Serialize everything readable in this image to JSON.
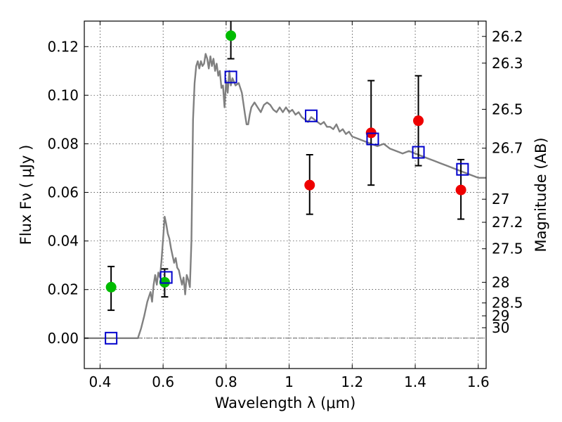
{
  "chart_data": {
    "type": "scatter",
    "xlabel": "Wavelength  λ (μm)",
    "ylabel": "Flux  Fν  ( μJy )",
    "y2label": "Magnitude (AB)",
    "xlim": [
      0.35,
      1.625
    ],
    "ylim": [
      -0.0125,
      0.1305
    ],
    "grid": true,
    "x_ticks": [
      0.4,
      0.6,
      0.8,
      1.0,
      1.2,
      1.4,
      1.6
    ],
    "x_tick_labels": [
      "0.4",
      "0.6",
      "0.8",
      "1",
      "1.2",
      "1.4",
      "1.6"
    ],
    "y_ticks": [
      0.0,
      0.02,
      0.04,
      0.06,
      0.08,
      0.1,
      0.12
    ],
    "y_tick_labels": [
      "0.00",
      "0.02",
      "0.04",
      "0.06",
      "0.08",
      "0.10",
      "0.12"
    ],
    "y2_ticks": [
      {
        "flux": 0.1242,
        "label": "26.2"
      },
      {
        "flux": 0.1132,
        "label": "26.3"
      },
      {
        "flux": 0.0942,
        "label": "26.5"
      },
      {
        "flux": 0.0782,
        "label": "26.7"
      },
      {
        "flux": 0.0572,
        "label": "27"
      },
      {
        "flux": 0.0477,
        "label": "27.2"
      },
      {
        "flux": 0.0368,
        "label": "27.5"
      },
      {
        "flux": 0.023,
        "label": "28"
      },
      {
        "flux": 0.0145,
        "label": "28.5"
      },
      {
        "flux": 0.0092,
        "label": "29"
      },
      {
        "flux": 0.0043,
        "label": "30"
      }
    ],
    "zero_line": 0.0,
    "colors": {
      "model": "#808080",
      "green": "#00bb00",
      "red": "#ee0000",
      "square": "#0000cc",
      "errorbar": "#000000"
    },
    "series": [
      {
        "name": "model spectrum",
        "kind": "line",
        "x": [
          0.35,
          0.52,
          0.53,
          0.54,
          0.55,
          0.56,
          0.565,
          0.57,
          0.575,
          0.58,
          0.585,
          0.59,
          0.595,
          0.6,
          0.605,
          0.61,
          0.615,
          0.62,
          0.625,
          0.63,
          0.635,
          0.64,
          0.645,
          0.65,
          0.655,
          0.66,
          0.665,
          0.67,
          0.675,
          0.68,
          0.685,
          0.69,
          0.695,
          0.7,
          0.705,
          0.71,
          0.715,
          0.72,
          0.725,
          0.73,
          0.735,
          0.74,
          0.745,
          0.75,
          0.755,
          0.76,
          0.765,
          0.77,
          0.775,
          0.78,
          0.785,
          0.79,
          0.795,
          0.8,
          0.805,
          0.81,
          0.815,
          0.82,
          0.83,
          0.84,
          0.85,
          0.86,
          0.865,
          0.87,
          0.875,
          0.88,
          0.885,
          0.89,
          0.9,
          0.91,
          0.92,
          0.93,
          0.94,
          0.95,
          0.96,
          0.97,
          0.98,
          0.99,
          1.0,
          1.01,
          1.02,
          1.03,
          1.04,
          1.05,
          1.06,
          1.07,
          1.08,
          1.09,
          1.1,
          1.11,
          1.12,
          1.13,
          1.14,
          1.15,
          1.16,
          1.17,
          1.18,
          1.19,
          1.2,
          1.22,
          1.24,
          1.26,
          1.28,
          1.3,
          1.32,
          1.34,
          1.36,
          1.38,
          1.4,
          1.42,
          1.44,
          1.46,
          1.48,
          1.5,
          1.52,
          1.54,
          1.56,
          1.58,
          1.6,
          1.625
        ],
        "y": [
          0.0,
          0.0,
          0.004,
          0.009,
          0.015,
          0.019,
          0.015,
          0.022,
          0.026,
          0.022,
          0.027,
          0.025,
          0.032,
          0.041,
          0.05,
          0.047,
          0.043,
          0.041,
          0.037,
          0.034,
          0.031,
          0.033,
          0.029,
          0.028,
          0.025,
          0.022,
          0.025,
          0.018,
          0.026,
          0.024,
          0.021,
          0.04,
          0.09,
          0.105,
          0.112,
          0.114,
          0.111,
          0.114,
          0.112,
          0.113,
          0.117,
          0.115,
          0.111,
          0.116,
          0.112,
          0.115,
          0.11,
          0.113,
          0.108,
          0.11,
          0.103,
          0.104,
          0.095,
          0.106,
          0.101,
          0.11,
          0.104,
          0.107,
          0.104,
          0.105,
          0.101,
          0.092,
          0.088,
          0.088,
          0.092,
          0.095,
          0.096,
          0.097,
          0.095,
          0.093,
          0.096,
          0.097,
          0.096,
          0.094,
          0.093,
          0.095,
          0.093,
          0.095,
          0.093,
          0.094,
          0.092,
          0.093,
          0.091,
          0.09,
          0.089,
          0.091,
          0.09,
          0.089,
          0.088,
          0.089,
          0.087,
          0.087,
          0.086,
          0.088,
          0.085,
          0.086,
          0.084,
          0.085,
          0.083,
          0.082,
          0.081,
          0.08,
          0.079,
          0.08,
          0.078,
          0.077,
          0.076,
          0.077,
          0.076,
          0.075,
          0.074,
          0.073,
          0.072,
          0.071,
          0.07,
          0.069,
          0.068,
          0.067,
          0.066,
          0.066
        ]
      },
      {
        "name": "green points",
        "kind": "points",
        "marker": "circle",
        "color": "green",
        "x": [
          0.435,
          0.605,
          0.815
        ],
        "y": [
          0.021,
          0.023,
          0.1245
        ],
        "yerr_low": [
          0.0115,
          0.017,
          0.115
        ],
        "yerr_high": [
          0.0295,
          0.0285,
          0.134
        ]
      },
      {
        "name": "red points",
        "kind": "points",
        "marker": "circle",
        "color": "red",
        "x": [
          1.065,
          1.26,
          1.41,
          1.545
        ],
        "y": [
          0.063,
          0.0845,
          0.0895,
          0.061
        ],
        "yerr_low": [
          0.051,
          0.063,
          0.071,
          0.049
        ],
        "yerr_high": [
          0.0755,
          0.106,
          0.108,
          0.0735
        ]
      },
      {
        "name": "model photometry",
        "kind": "points",
        "marker": "open-square",
        "color": "square",
        "x": [
          0.435,
          0.61,
          0.815,
          1.07,
          1.265,
          1.41,
          1.55
        ],
        "y": [
          0.0,
          0.025,
          0.1075,
          0.0915,
          0.082,
          0.0765,
          0.0695
        ]
      }
    ]
  }
}
